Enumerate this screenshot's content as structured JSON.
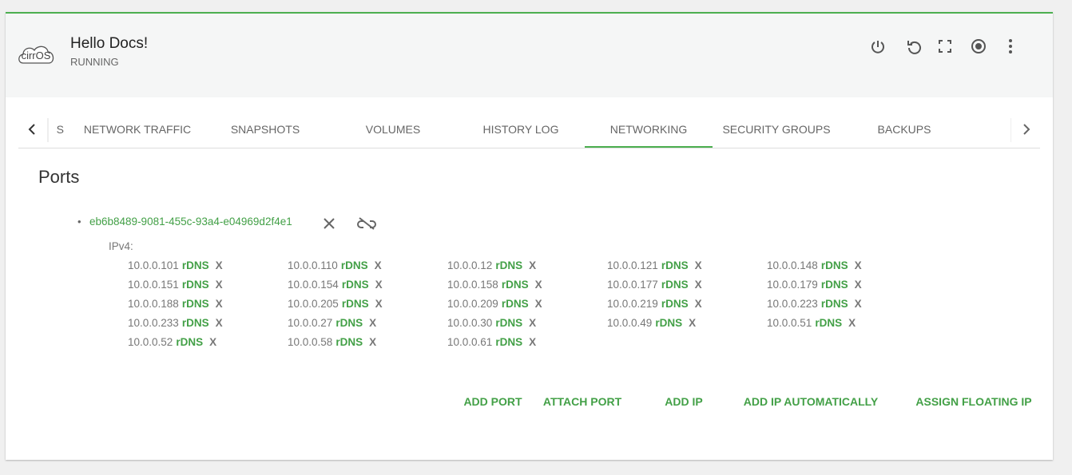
{
  "header": {
    "logo": "cirrOS",
    "title": "Hello Docs!",
    "status": "RUNNING"
  },
  "tabs": [
    "S",
    "NETWORK TRAFFIC",
    "SNAPSHOTS",
    "VOLUMES",
    "HISTORY LOG",
    "NETWORKING",
    "SECURITY GROUPS",
    "BACKUPS"
  ],
  "active_tab": 5,
  "ports": {
    "title": "Ports",
    "port_id": "eb6b8489-9081-455c-93a4-e04969d2f4e1",
    "ipv4_label": "IPv4:",
    "rdns_label": "rDNS",
    "remove_label": "X",
    "ips": [
      "10.0.0.101",
      "10.0.0.110",
      "10.0.0.12",
      "10.0.0.121",
      "10.0.0.148",
      "10.0.0.151",
      "10.0.0.154",
      "10.0.0.158",
      "10.0.0.177",
      "10.0.0.179",
      "10.0.0.188",
      "10.0.0.205",
      "10.0.0.209",
      "10.0.0.219",
      "10.0.0.223",
      "10.0.0.233",
      "10.0.0.27",
      "10.0.0.30",
      "10.0.0.49",
      "10.0.0.51",
      "10.0.0.52",
      "10.0.0.58",
      "10.0.0.61"
    ]
  },
  "actions": [
    "ADD PORT",
    "ATTACH PORT",
    "ADD IP",
    "ADD IP AUTOMATICALLY",
    "ASSIGN FLOATING IP"
  ]
}
